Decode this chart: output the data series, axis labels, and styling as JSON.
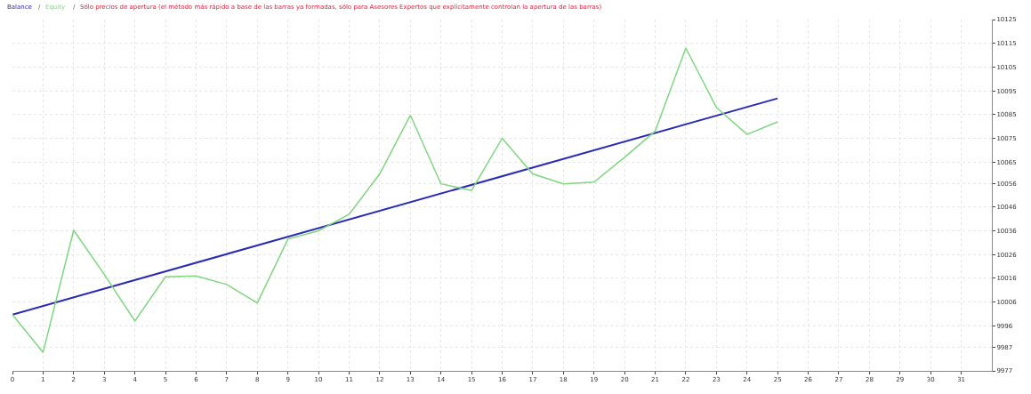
{
  "chart_data": {
    "type": "line",
    "annotations": [
      "/",
      "/"
    ],
    "title": "Sólo precios de apertura (el método más rápido a base de las barras ya formadas, sólo para Asesores Expertos que explícitamente controlan la apertura de las barras)",
    "series": [
      {
        "name": "Balance",
        "color": "#2b2bb0",
        "x": [
          0,
          25
        ],
        "values": [
          10000.7,
          10091.8
        ]
      },
      {
        "name": "Equity",
        "color": "#7fd67f",
        "x": [
          0,
          1,
          2,
          3,
          4,
          5,
          6,
          7,
          8,
          9,
          10,
          11,
          12,
          13,
          14,
          15,
          16,
          17,
          18,
          19,
          20,
          21,
          22,
          23,
          24,
          25
        ],
        "values": [
          10000.7,
          9984.8,
          10036.3,
          10017.6,
          9998,
          10016.6,
          10017,
          10013.4,
          10005.6,
          10032.5,
          10036,
          10043,
          10060,
          10084.7,
          10055.8,
          10053,
          10075,
          10060,
          10055.8,
          10056.5,
          10067,
          10078,
          10113,
          10088,
          10076.6,
          10081.9
        ]
      }
    ],
    "xlim": [
      0,
      32
    ],
    "xticks": [
      0,
      1,
      2,
      3,
      4,
      5,
      6,
      7,
      8,
      9,
      10,
      11,
      12,
      13,
      14,
      15,
      16,
      17,
      18,
      19,
      20,
      21,
      22,
      23,
      24,
      25,
      26,
      27,
      28,
      29,
      30,
      31
    ],
    "ylim": [
      9977,
      10125
    ],
    "yticks": [
      9977,
      9987,
      9996,
      10006,
      10016,
      10026,
      10036,
      10046,
      10056,
      10065,
      10075,
      10085,
      10095,
      10105,
      10115,
      10125
    ],
    "grid": true,
    "legend": false
  }
}
